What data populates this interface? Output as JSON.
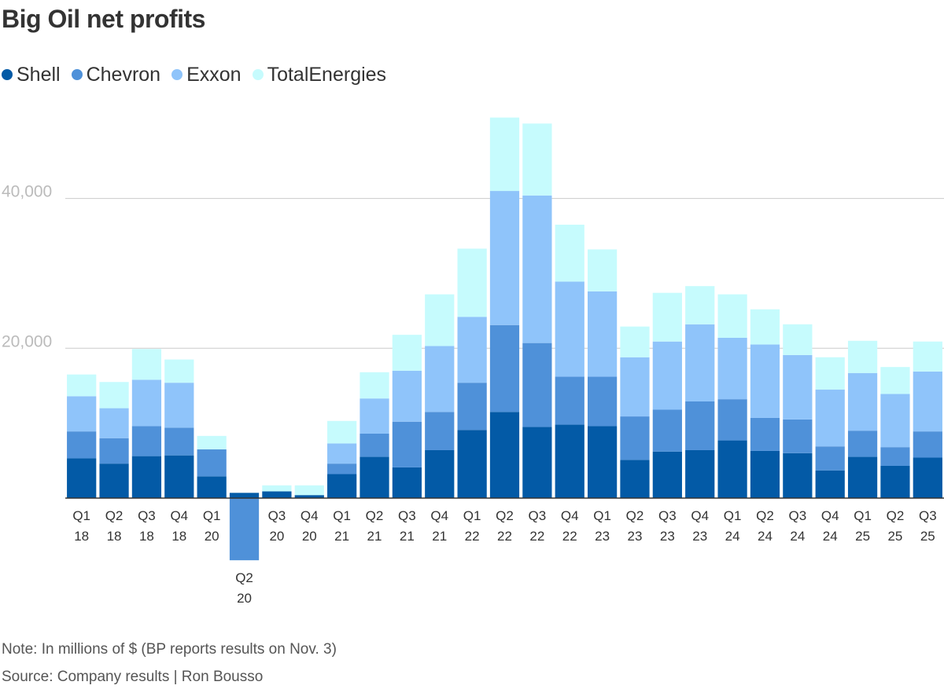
{
  "colors": {
    "Shell": "#035aa6",
    "Chevron": "#4f91d9",
    "Exxon": "#8fc4fa",
    "TotalEnergies": "#c6fbfd",
    "grid": "#cccccc",
    "axis": "#333333"
  },
  "note": "Note: In millions of $ (BP reports results on Nov. 3)",
  "source": "Source: Company results | Ron Bousso",
  "chart_data": {
    "type": "bar",
    "stacked": true,
    "title": "Big Oil net profits",
    "xlabel": "",
    "ylabel": "",
    "ylim": [
      -8300,
      51000
    ],
    "yticks": [
      20000,
      40000
    ],
    "ytick_labels": [
      "20,000",
      "40,000"
    ],
    "grid": true,
    "legend": "top-left",
    "categories": [
      "Q1 18",
      "Q2 18",
      "Q3 18",
      "Q4 18",
      "Q1 20",
      "Q2 20",
      "Q3 20",
      "Q4 20",
      "Q1 21",
      "Q2 21",
      "Q3 21",
      "Q4 21",
      "Q1 22",
      "Q2 22",
      "Q3 22",
      "Q4 22",
      "Q1 23",
      "Q2 23",
      "Q3 23",
      "Q4 23",
      "Q1 24",
      "Q2 24",
      "Q3 24",
      "Q4 24",
      "Q1 25",
      "Q2 25",
      "Q3 25"
    ],
    "category_labels": [
      [
        "Q1",
        "18"
      ],
      [
        "Q2",
        "18"
      ],
      [
        "Q3",
        "18"
      ],
      [
        "Q4",
        "18"
      ],
      [
        "Q1",
        "20"
      ],
      [
        "Q2",
        "20"
      ],
      [
        "Q3",
        "20"
      ],
      [
        "Q4",
        "20"
      ],
      [
        "Q1",
        "21"
      ],
      [
        "Q2",
        "21"
      ],
      [
        "Q3",
        "21"
      ],
      [
        "Q4",
        "21"
      ],
      [
        "Q1",
        "22"
      ],
      [
        "Q2",
        "22"
      ],
      [
        "Q3",
        "22"
      ],
      [
        "Q4",
        "22"
      ],
      [
        "Q1",
        "23"
      ],
      [
        "Q2",
        "23"
      ],
      [
        "Q3",
        "23"
      ],
      [
        "Q4",
        "23"
      ],
      [
        "Q1",
        "24"
      ],
      [
        "Q2",
        "24"
      ],
      [
        "Q3",
        "24"
      ],
      [
        "Q4",
        "24"
      ],
      [
        "Q1",
        "25"
      ],
      [
        "Q2",
        "25"
      ],
      [
        "Q3",
        "25"
      ]
    ],
    "series": [
      {
        "name": "Shell",
        "values": [
          5300,
          4600,
          5600,
          5700,
          2900,
          700,
          900,
          400,
          3200,
          5500,
          4100,
          6400,
          9100,
          11500,
          9500,
          9800,
          9600,
          5100,
          6200,
          6400,
          7700,
          6300,
          6000,
          3700,
          5500,
          4300,
          5400
        ]
      },
      {
        "name": "Chevron",
        "values": [
          3600,
          3400,
          4000,
          3700,
          3600,
          -8300,
          0,
          0,
          1400,
          3100,
          6100,
          5100,
          6300,
          11600,
          11200,
          6400,
          6600,
          5800,
          5600,
          6500,
          5500,
          4400,
          4500,
          3200,
          3500,
          2500,
          3500
        ]
      },
      {
        "name": "Exxon",
        "values": [
          4700,
          4000,
          6200,
          6000,
          0,
          0,
          0,
          0,
          2700,
          4700,
          6800,
          8800,
          8800,
          17900,
          19700,
          12700,
          11400,
          7900,
          9100,
          10300,
          8200,
          9800,
          8600,
          7600,
          7700,
          7100,
          8000
        ]
      },
      {
        "name": "TotalEnergies",
        "values": [
          2900,
          3500,
          4100,
          3100,
          1800,
          0,
          800,
          1300,
          3000,
          3500,
          4800,
          6900,
          9100,
          9800,
          9600,
          7600,
          5600,
          4100,
          6500,
          5100,
          5800,
          4700,
          4100,
          4300,
          4300,
          3600,
          4000
        ]
      }
    ]
  }
}
